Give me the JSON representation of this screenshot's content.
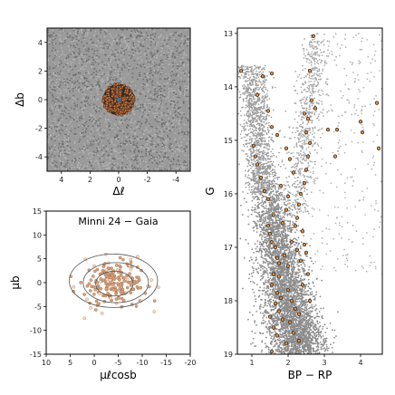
{
  "chart_data": [
    {
      "id": "spatial",
      "type": "scatter",
      "xlabel": "Δℓ",
      "ylabel": "Δb",
      "xlim": [
        5,
        -5
      ],
      "ylim": [
        -5,
        5
      ],
      "xticks": [
        -4,
        -2,
        0,
        2,
        4
      ],
      "yticks": [
        -4,
        -2,
        0,
        2,
        4
      ],
      "grid": false,
      "field_density": "uniform dense grey stars over whole field",
      "cluster_radius": 1.1,
      "cluster_center": [
        0,
        0
      ],
      "colors": {
        "field": "#7f7f7f",
        "members": "#c8703a",
        "edge": "#222222",
        "center": "#1f77b4"
      }
    },
    {
      "id": "proper-motion",
      "type": "scatter",
      "title": "Minni 24  −  Gaia",
      "xlabel": "μℓcosb",
      "ylabel": "μb",
      "xlim": [
        10,
        -20
      ],
      "ylim": [
        -15,
        15
      ],
      "xticks": [
        10,
        5,
        0,
        -5,
        -10,
        -15,
        -20
      ],
      "yticks": [
        -15,
        -10,
        -5,
        0,
        5,
        10,
        15
      ],
      "grid": false,
      "cluster_center": [
        -4,
        0
      ],
      "contours": [
        {
          "cx": -4.2,
          "cy": -0.2,
          "rx": 3.9,
          "ry": 2.6
        },
        {
          "cx": -4.5,
          "cy": 0.0,
          "rx": 6.8,
          "ry": 4.2
        },
        {
          "cx": -4.0,
          "cy": 0.4,
          "rx": 9.2,
          "ry": 5.6
        }
      ],
      "colors": {
        "points": "#d9a27c",
        "contour": "#555555"
      }
    },
    {
      "id": "cmd",
      "type": "scatter",
      "xlabel": "BP − RP",
      "ylabel": "G",
      "xlim": [
        0.6,
        4.6
      ],
      "ylim": [
        19,
        12.9
      ],
      "xticks": [
        1,
        2,
        3,
        4
      ],
      "yticks": [
        13,
        14,
        15,
        16,
        17,
        18,
        19
      ],
      "grid": false,
      "members": [
        [
          1.05,
          15.1
        ],
        [
          1.1,
          15.3
        ],
        [
          1.15,
          15.45
        ],
        [
          1.25,
          15.7
        ],
        [
          1.35,
          15.95
        ],
        [
          1.45,
          16.1
        ],
        [
          1.45,
          16.6
        ],
        [
          1.5,
          16.75
        ],
        [
          1.55,
          16.9
        ],
        [
          1.6,
          16.4
        ],
        [
          1.65,
          17.0
        ],
        [
          1.7,
          17.2
        ],
        [
          1.75,
          17.3
        ],
        [
          1.6,
          17.5
        ],
        [
          1.55,
          17.7
        ],
        [
          1.7,
          17.85
        ],
        [
          1.8,
          17.95
        ],
        [
          1.65,
          18.05
        ],
        [
          1.75,
          18.2
        ],
        [
          1.85,
          18.35
        ],
        [
          1.6,
          18.5
        ],
        [
          1.7,
          18.65
        ],
        [
          1.95,
          18.8
        ],
        [
          1.55,
          18.95
        ],
        [
          2.0,
          17.8
        ],
        [
          2.1,
          18.0
        ],
        [
          2.2,
          18.15
        ],
        [
          2.05,
          18.4
        ],
        [
          2.15,
          18.6
        ],
        [
          2.3,
          18.75
        ],
        [
          1.9,
          17.15
        ],
        [
          2.0,
          17.35
        ],
        [
          2.1,
          16.9
        ],
        [
          2.2,
          16.6
        ],
        [
          2.25,
          16.45
        ],
        [
          2.3,
          16.2
        ],
        [
          2.35,
          16.0
        ],
        [
          2.45,
          15.8
        ],
        [
          2.5,
          15.55
        ],
        [
          2.55,
          15.3
        ],
        [
          2.6,
          15.05
        ],
        [
          2.5,
          14.85
        ],
        [
          2.55,
          14.6
        ],
        [
          2.45,
          14.5
        ],
        [
          2.65,
          14.25
        ],
        [
          2.4,
          16.7
        ],
        [
          2.45,
          16.95
        ],
        [
          2.5,
          17.1
        ],
        [
          2.35,
          17.25
        ],
        [
          2.55,
          17.5
        ],
        [
          2.4,
          17.7
        ],
        [
          2.6,
          18.0
        ],
        [
          2.3,
          18.25
        ],
        [
          1.95,
          16.3
        ],
        [
          1.85,
          16.55
        ],
        [
          2.0,
          16.05
        ],
        [
          1.8,
          15.85
        ],
        [
          2.15,
          15.6
        ],
        [
          2.05,
          15.35
        ],
        [
          1.95,
          15.15
        ],
        [
          0.7,
          13.7
        ],
        [
          1.15,
          14.15
        ],
        [
          1.45,
          14.45
        ],
        [
          1.55,
          14.75
        ],
        [
          1.7,
          14.9
        ],
        [
          2.7,
          13.05
        ],
        [
          2.6,
          13.7
        ],
        [
          2.75,
          14.4
        ],
        [
          3.1,
          14.8
        ],
        [
          3.35,
          14.8
        ],
        [
          3.3,
          15.3
        ],
        [
          4.0,
          14.65
        ],
        [
          4.05,
          14.85
        ],
        [
          4.5,
          15.15
        ],
        [
          4.45,
          14.3
        ],
        [
          1.3,
          13.8
        ],
        [
          1.55,
          13.75
        ],
        [
          1.75,
          17.55
        ],
        [
          1.5,
          18.3
        ],
        [
          2.25,
          17.05
        ]
      ],
      "colors": {
        "field": "#8c8c8c",
        "members": "#e08a3c",
        "edge": "#111111"
      }
    }
  ]
}
